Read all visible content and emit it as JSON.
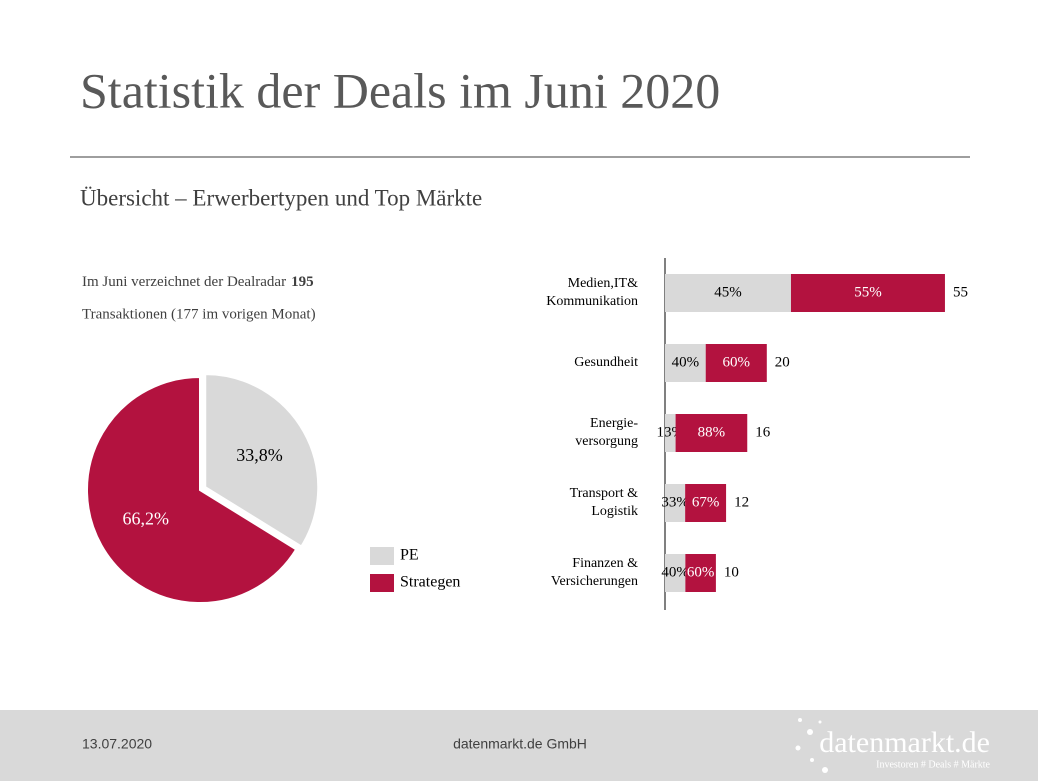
{
  "title": "Statistik der Deals im Juni 2020",
  "subtitle": "Übersicht – Erwerbertypen und Top Märkte",
  "intro": {
    "text": "Im Juni verzeichnet der Dealradar",
    "count": 195,
    "line2": "Transaktionen (177 im vorigen Monat)"
  },
  "chart_data": [
    {
      "type": "pie",
      "categories": [
        "PE",
        "Strategen"
      ],
      "values": [
        33.8,
        66.2
      ],
      "value_labels": [
        "33,8%",
        "66,2%"
      ],
      "colors": [
        "#d9d9d9",
        "#b3123f"
      ],
      "legend": "right"
    },
    {
      "type": "bar",
      "orientation": "horizontal",
      "stacked": true,
      "categories": [
        "Medien,IT&\nKommunikation",
        "Gesundheit",
        "Energie-\nversorgung",
        "Transport &\nLogistik",
        "Finanzen &\nVersicherungen"
      ],
      "values": [
        55,
        20,
        16,
        12,
        10
      ],
      "series": [
        {
          "name": "PE",
          "color": "#d9d9d9",
          "values": [
            45,
            40,
            13,
            33,
            40
          ],
          "value_labels": [
            "45%",
            "40%",
            "13%",
            "33%",
            "40%"
          ]
        },
        {
          "name": "Strategen",
          "color": "#b3123f",
          "values": [
            55,
            60,
            88,
            67,
            60
          ],
          "value_labels": [
            "55%",
            "60%",
            "88%",
            "67%",
            "60%"
          ]
        }
      ]
    }
  ],
  "footer": {
    "date": "13.07.2020",
    "company": "datenmarkt.de GmbH",
    "logo": "datenmarkt.de",
    "tagline": "Investoren # Deals # Märkte"
  }
}
